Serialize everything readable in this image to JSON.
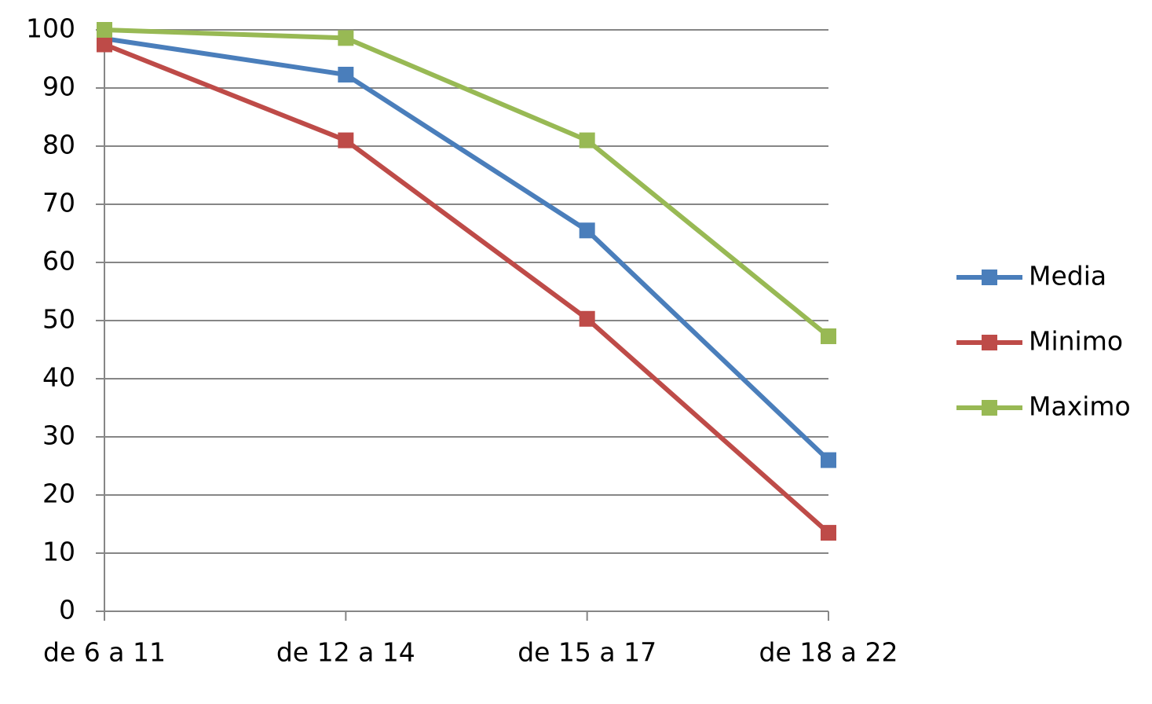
{
  "chart_data": {
    "type": "line",
    "categories": [
      "de 6 a 11",
      "de 12 a 14",
      "de 15 a 17",
      "de 18 a 22"
    ],
    "series": [
      {
        "name": "Media",
        "color": "#4a7ebb",
        "values": [
          98.5,
          92.3,
          65.5,
          26
        ]
      },
      {
        "name": "Minimo",
        "color": "#be4b48",
        "values": [
          97.5,
          81,
          50.3,
          13.5
        ]
      },
      {
        "name": "Maximo",
        "color": "#98b954",
        "values": [
          100,
          98.6,
          81,
          47.3
        ]
      }
    ],
    "ylim": [
      0,
      100
    ],
    "yticks": [
      0,
      10,
      20,
      30,
      40,
      50,
      60,
      70,
      80,
      90,
      100
    ],
    "grid": true,
    "legend": "right"
  }
}
